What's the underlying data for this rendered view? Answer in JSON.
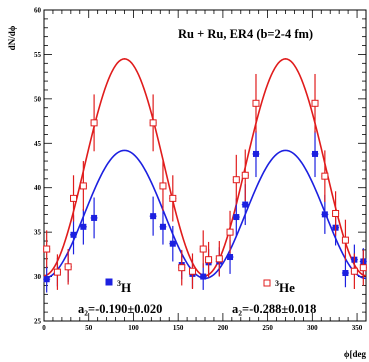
{
  "chart_data": {
    "type": "scatter",
    "title": "Ru + Ru, ER4 (b=2-4 fm)",
    "xlabel": "ϕ[deg",
    "ylabel": "dN/dϕ",
    "xlim": [
      0,
      360
    ],
    "ylim": [
      25,
      60
    ],
    "xticks": [
      0,
      50,
      100,
      150,
      200,
      250,
      300,
      350
    ],
    "yticks": [
      25,
      30,
      35,
      40,
      45,
      50,
      55,
      60
    ],
    "xtick_labels": [
      "0",
      "50",
      "100",
      "150",
      "200",
      "250",
      "300",
      "350"
    ],
    "ytick_labels": [
      "25",
      "30",
      "35",
      "40",
      "45",
      "50",
      "55",
      "60"
    ],
    "grid": false,
    "colors": {
      "h3": "#1c20e0",
      "he3": "#e01c1c"
    },
    "series": [
      {
        "name": "3H",
        "marker": "filled-square",
        "points": [
          {
            "x": 3,
            "y": 29.7,
            "err": 1.5
          },
          {
            "x": 15,
            "y": 30.5,
            "err": 1.6
          },
          {
            "x": 27,
            "y": 31.1,
            "err": 1.7
          },
          {
            "x": 33,
            "y": 34.7,
            "err": 2.2
          },
          {
            "x": 44,
            "y": 35.6,
            "err": 2.0
          },
          {
            "x": 56,
            "y": 36.6,
            "err": 2.3
          },
          {
            "x": 122,
            "y": 36.8,
            "err": 2.2
          },
          {
            "x": 133,
            "y": 35.6,
            "err": 2.0
          },
          {
            "x": 144,
            "y": 33.7,
            "err": 2.0
          },
          {
            "x": 154,
            "y": 31.3,
            "err": 1.6
          },
          {
            "x": 166,
            "y": 30.3,
            "err": 1.6
          },
          {
            "x": 178,
            "y": 30.0,
            "err": 1.5
          },
          {
            "x": 184,
            "y": 31.6,
            "err": 1.5
          },
          {
            "x": 196,
            "y": 31.7,
            "err": 1.6
          },
          {
            "x": 208,
            "y": 32.2,
            "err": 1.9
          },
          {
            "x": 215,
            "y": 36.7,
            "err": 2.1
          },
          {
            "x": 225,
            "y": 38.1,
            "err": 2.3
          },
          {
            "x": 237,
            "y": 43.8,
            "err": 2.6
          },
          {
            "x": 303,
            "y": 43.8,
            "err": 2.6
          },
          {
            "x": 314,
            "y": 37.0,
            "err": 2.2
          },
          {
            "x": 326,
            "y": 35.5,
            "err": 2.0
          },
          {
            "x": 337,
            "y": 30.4,
            "err": 1.6
          },
          {
            "x": 347,
            "y": 31.9,
            "err": 1.7
          },
          {
            "x": 357,
            "y": 31.7,
            "err": 1.5
          }
        ],
        "fit": {
          "mean": 37.0,
          "amplitude": 7.2,
          "phase_deg": 90
        }
      },
      {
        "name": "3He",
        "marker": "open-square",
        "points": [
          {
            "x": 3,
            "y": 33.1,
            "err": 2.1
          },
          {
            "x": 15,
            "y": 30.5,
            "err": 2.0
          },
          {
            "x": 27,
            "y": 31.1,
            "err": 2.0
          },
          {
            "x": 33,
            "y": 38.8,
            "err": 2.6
          },
          {
            "x": 44,
            "y": 40.2,
            "err": 2.8
          },
          {
            "x": 56,
            "y": 47.3,
            "err": 3.2
          },
          {
            "x": 122,
            "y": 47.3,
            "err": 3.2
          },
          {
            "x": 133,
            "y": 40.2,
            "err": 2.8
          },
          {
            "x": 144,
            "y": 38.8,
            "err": 2.6
          },
          {
            "x": 154,
            "y": 31.0,
            "err": 2.0
          },
          {
            "x": 166,
            "y": 30.6,
            "err": 2.0
          },
          {
            "x": 178,
            "y": 33.1,
            "err": 2.1
          },
          {
            "x": 184,
            "y": 31.9,
            "err": 2.0
          },
          {
            "x": 196,
            "y": 32.0,
            "err": 2.0
          },
          {
            "x": 208,
            "y": 35.0,
            "err": 2.4
          },
          {
            "x": 215,
            "y": 40.9,
            "err": 2.8
          },
          {
            "x": 225,
            "y": 41.4,
            "err": 2.9
          },
          {
            "x": 237,
            "y": 49.5,
            "err": 3.3
          },
          {
            "x": 303,
            "y": 49.5,
            "err": 3.3
          },
          {
            "x": 314,
            "y": 41.3,
            "err": 2.9
          },
          {
            "x": 326,
            "y": 37.1,
            "err": 2.5
          },
          {
            "x": 337,
            "y": 34.1,
            "err": 2.3
          },
          {
            "x": 347,
            "y": 30.6,
            "err": 2.0
          },
          {
            "x": 357,
            "y": 31.0,
            "err": 2.0
          }
        ],
        "fit": {
          "mean": 42.3,
          "amplitude": 12.2,
          "phase_deg": 90
        }
      }
    ],
    "legend": [
      {
        "label": "3H",
        "sup": "3",
        "base": "H",
        "series": 0
      },
      {
        "label": "3He",
        "sup": "3",
        "base": "He",
        "series": 1
      }
    ],
    "annotations": [
      {
        "text": "a₂=-0.190±0.020",
        "sub_text": "2",
        "series": 0
      },
      {
        "text": "a₂=-0.288±0.018",
        "sub_text": "2",
        "series": 1
      }
    ]
  }
}
